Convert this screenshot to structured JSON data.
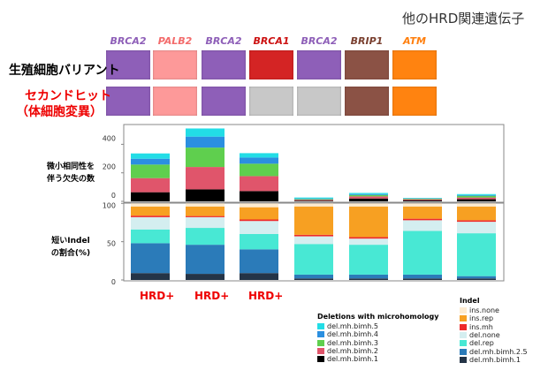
{
  "title": "他のHRD関連遺伝子",
  "row_labels": {
    "germline": "生殖細胞バリアント",
    "second_hit_1": "セカンドヒット",
    "second_hit_2": "（体細胞変異）"
  },
  "genes": [
    {
      "name": "BRCA2",
      "color": "#8e5fb8",
      "germline": "#8e5fb8",
      "second": "#8e5fb8"
    },
    {
      "name": "PALB2",
      "color": "#f36b6b",
      "germline": "#fd9999",
      "second": "#fd9999"
    },
    {
      "name": "BRCA2",
      "color": "#8e5fb8",
      "germline": "#8e5fb8",
      "second": "#8e5fb8"
    },
    {
      "name": "BRCA1",
      "color": "#cc1111",
      "germline": "#d42424",
      "second": "#c8c8c8"
    },
    {
      "name": "BRCA2",
      "color": "#8e5fb8",
      "germline": "#8e5fb8",
      "second": "#c8c8c8"
    },
    {
      "name": "BRIP1",
      "color": "#7a4030",
      "germline": "#8b5245",
      "second": "#8b5245"
    },
    {
      "name": "ATM",
      "color": "#ff7f0e",
      "germline": "#ff8310",
      "second": "#ff8310"
    }
  ],
  "hrd_labels": [
    "HRD+",
    "HRD+",
    "HRD+"
  ],
  "chart_data": [
    {
      "type": "bar",
      "stacked": true,
      "ylabel_lines": [
        "微小相同性を",
        "伴う欠失の数"
      ],
      "ylim": [
        0,
        520
      ],
      "ticks": [
        "0",
        "200",
        "400"
      ],
      "tick_values": [
        0,
        200,
        400
      ],
      "legend_title": "Deletions with microhomology",
      "series": [
        {
          "name": "del.mh.bimh.1",
          "color": "#000000",
          "values": [
            64,
            84,
            72,
            5,
            20,
            8,
            15
          ]
        },
        {
          "name": "del.mh.bimh.2",
          "color": "#e0556b",
          "values": [
            99,
            157,
            105,
            6,
            15,
            7,
            12
          ]
        },
        {
          "name": "del.mh.bimh.3",
          "color": "#5fcf4e",
          "values": [
            95,
            136,
            87,
            5,
            10,
            4,
            12
          ]
        },
        {
          "name": "del.mh.bimh.4",
          "color": "#2b8fe0",
          "values": [
            41,
            77,
            43,
            4,
            6,
            2,
            5
          ]
        },
        {
          "name": "del.mh.bimh.5",
          "color": "#22dde6",
          "values": [
            37,
            57,
            31,
            7,
            8,
            3,
            7
          ]
        }
      ]
    },
    {
      "type": "bar",
      "stacked": true,
      "ylabel_lines": [
        "短いIndel",
        "の割合(%)"
      ],
      "ylim": [
        0,
        100
      ],
      "ticks": [
        "0",
        "50",
        "100"
      ],
      "tick_values": [
        0,
        50,
        100
      ],
      "legend_title": "Indel",
      "series": [
        {
          "name": "del.mh.bimh.1",
          "color": "#243447",
          "values": [
            9,
            8,
            9,
            2,
            2,
            2,
            2
          ]
        },
        {
          "name": "del.mh.bimh.2.5",
          "color": "#2b7bb9",
          "values": [
            39,
            38,
            31,
            5,
            5,
            5,
            3
          ]
        },
        {
          "name": "del.rep",
          "color": "#48e8d4",
          "values": [
            18,
            22,
            20,
            40,
            39,
            57,
            56
          ]
        },
        {
          "name": "del.none",
          "color": "#d4eef0",
          "values": [
            16,
            14,
            17,
            10,
            8,
            14,
            15
          ]
        },
        {
          "name": "ins.mh",
          "color": "#ee2a2a",
          "values": [
            2,
            1.5,
            2,
            2,
            2,
            2,
            2
          ]
        },
        {
          "name": "ins.rep",
          "color": "#f7a022",
          "values": [
            12,
            12.5,
            16,
            37,
            40,
            16,
            18
          ]
        },
        {
          "name": "ins.none",
          "color": "#fdebd0",
          "values": [
            4,
            4,
            5,
            4,
            4,
            4,
            4
          ]
        }
      ]
    }
  ]
}
